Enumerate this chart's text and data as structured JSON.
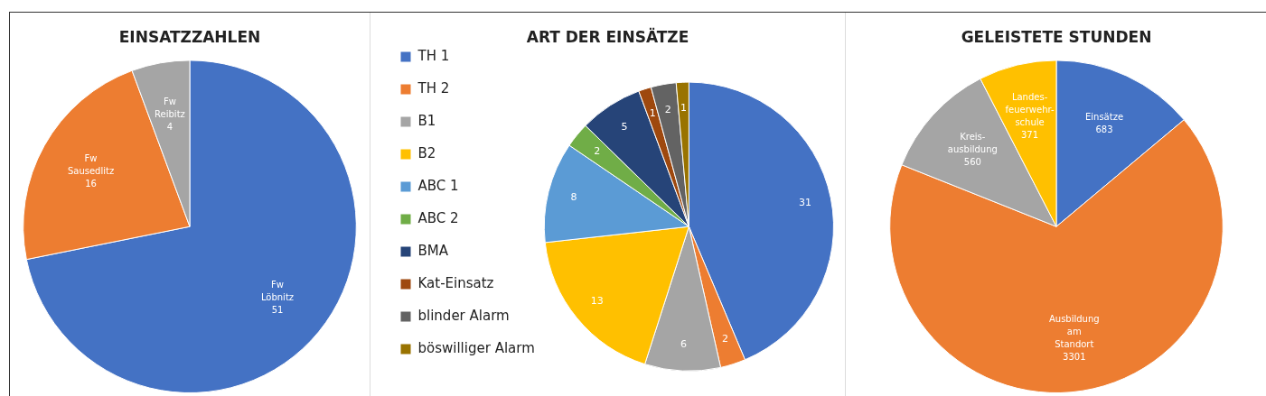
{
  "chart_data": [
    {
      "type": "pie",
      "title": "EINSATZZAHLEN",
      "categories": [
        "Fw Löbnitz",
        "Fw Sausedlitz",
        "Fw Reibitz"
      ],
      "values": [
        51,
        16,
        4
      ],
      "colors": [
        "#4472c4",
        "#ed7d31",
        "#a5a5a5"
      ],
      "data_labels": true,
      "legend": false
    },
    {
      "type": "pie",
      "title": "ART DER EINSÄTZE",
      "categories": [
        "TH 1",
        "TH 2",
        "B1",
        "B2",
        "ABC 1",
        "ABC 2",
        "BMA",
        "Kat-Einsatz",
        "blinder Alarm",
        "böswilliger Alarm"
      ],
      "values": [
        31,
        2,
        6,
        13,
        8,
        2,
        5,
        1,
        2,
        1
      ],
      "colors": [
        "#4472c4",
        "#ed7d31",
        "#a5a5a5",
        "#ffc000",
        "#5b9bd5",
        "#70ad47",
        "#264478",
        "#9e480e",
        "#636363",
        "#997300"
      ],
      "data_labels": true,
      "legend": "left"
    },
    {
      "type": "pie",
      "title": "GELEISTETE STUNDEN",
      "categories": [
        "Einsätze",
        "Ausbildung am Standort",
        "Kreis-ausbildung",
        "Landes-feuerwehr-schule"
      ],
      "values": [
        683,
        3301,
        560,
        371
      ],
      "colors": [
        "#4472c4",
        "#ed7d31",
        "#a5a5a5",
        "#ffc000"
      ],
      "data_labels": true,
      "legend": false
    }
  ]
}
